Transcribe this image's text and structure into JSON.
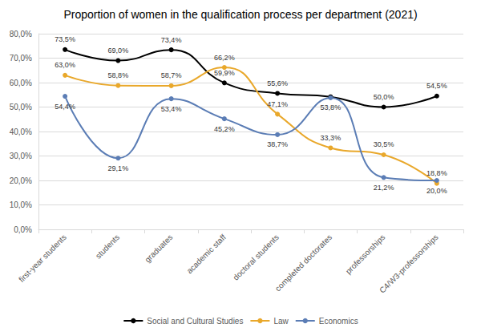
{
  "chart_data": {
    "type": "line",
    "title": "Proportion of women in the qualification process per department (2021)",
    "categories": [
      "first-year students",
      "students",
      "graduates",
      "academic staff",
      "doctoral students",
      "completed doctorates",
      "professorships",
      "C4/W3-professorships"
    ],
    "series": [
      {
        "name": "Social and Cultural Studies",
        "color": "#000000",
        "marker": "circle",
        "line_style": "smooth",
        "values": [
          73.5,
          69.0,
          73.4,
          59.9,
          55.6,
          54.2,
          50.0,
          54.5
        ],
        "value_labels": [
          "73,5%",
          "69,0%",
          "73,4%",
          "59,9%",
          "55,6%",
          null,
          "50,0%",
          "54,5%"
        ]
      },
      {
        "name": "Law",
        "color": "#E9A82B",
        "marker": "circle",
        "line_style": "smooth",
        "values": [
          63.0,
          58.8,
          58.7,
          66.2,
          47.1,
          33.3,
          30.5,
          18.8
        ],
        "value_labels": [
          "63,0%",
          "58,8%",
          "58,7%",
          "66,2%",
          "47,1%",
          "33,3%",
          "30,5%",
          "18,8%"
        ]
      },
      {
        "name": "Economics",
        "color": "#5B7DB5",
        "marker": "circle",
        "line_style": "smooth",
        "values": [
          54.4,
          29.1,
          53.4,
          45.2,
          38.7,
          53.8,
          21.2,
          20.0
        ],
        "value_labels": [
          "54,4%",
          "29,1%",
          "53,4%",
          "45,2%",
          "38,7%",
          "53,8%",
          "21,2%",
          "20,0%"
        ]
      }
    ],
    "ylim": [
      0,
      80
    ],
    "yticks": [
      {
        "value": 0,
        "label": "0,0%"
      },
      {
        "value": 10,
        "label": "10,0%"
      },
      {
        "value": 20,
        "label": "20,0%"
      },
      {
        "value": 30,
        "label": "30,0%"
      },
      {
        "value": 40,
        "label": "40,0%"
      },
      {
        "value": 50,
        "label": "50,0%"
      },
      {
        "value": 60,
        "label": "60,0%"
      },
      {
        "value": 70,
        "label": "70,0%"
      },
      {
        "value": 80,
        "label": "80,0%"
      }
    ],
    "grid": true,
    "legend": "bottom",
    "data_labels": true
  }
}
